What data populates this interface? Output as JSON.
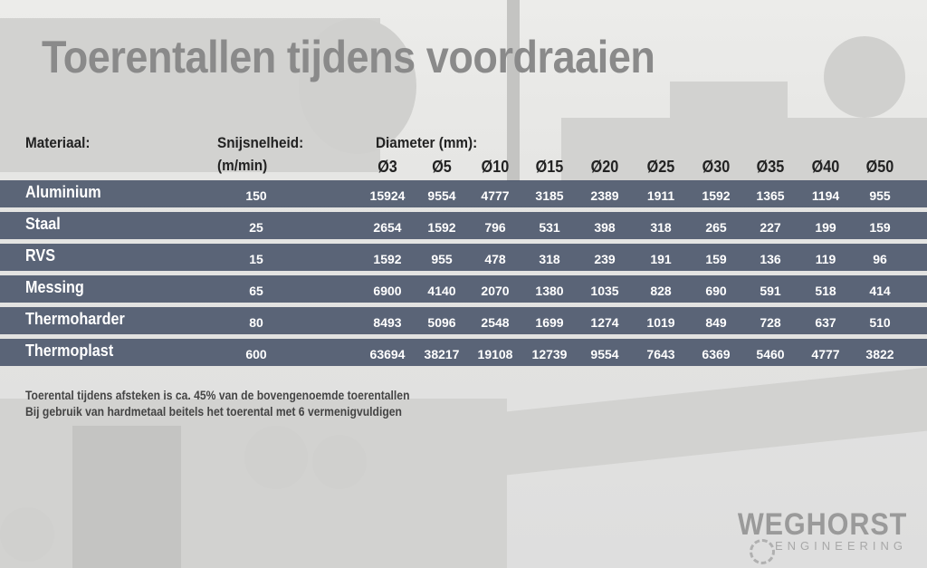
{
  "title": "Toerentallen tijdens voordraaien",
  "headers": {
    "material": "Materiaal:",
    "speed_line1": "Snijsnelheid:",
    "speed_line2": "(m/min)",
    "diameter": "Diameter (mm):"
  },
  "diameters": [
    "Ø3",
    "Ø5",
    "Ø10",
    "Ø15",
    "Ø20",
    "Ø25",
    "Ø30",
    "Ø35",
    "Ø40",
    "Ø50"
  ],
  "rows": [
    {
      "material": "Aluminium",
      "speed": "150",
      "values": [
        "15924",
        "9554",
        "4777",
        "3185",
        "2389",
        "1911",
        "1592",
        "1365",
        "1194",
        "955"
      ]
    },
    {
      "material": "Staal",
      "speed": "25",
      "values": [
        "2654",
        "1592",
        "796",
        "531",
        "398",
        "318",
        "265",
        "227",
        "199",
        "159"
      ]
    },
    {
      "material": "RVS",
      "speed": "15",
      "values": [
        "1592",
        "955",
        "478",
        "318",
        "239",
        "191",
        "159",
        "136",
        "119",
        "96"
      ]
    },
    {
      "material": "Messing",
      "speed": "65",
      "values": [
        "6900",
        "4140",
        "2070",
        "1380",
        "1035",
        "828",
        "690",
        "591",
        "518",
        "414"
      ]
    },
    {
      "material": "Thermoharder",
      "speed": "80",
      "values": [
        "8493",
        "5096",
        "2548",
        "1699",
        "1274",
        "1019",
        "849",
        "728",
        "637",
        "510"
      ]
    },
    {
      "material": "Thermoplast",
      "speed": "600",
      "values": [
        "63694",
        "38217",
        "19108",
        "12739",
        "9554",
        "7643",
        "6369",
        "5460",
        "4777",
        "3822"
      ]
    }
  ],
  "notes": [
    "Toerental tijdens afsteken is ca. 45% van de bovengenoemde toerentallen",
    "Bij gebruik van hardmetaal beitels het toerental met 6 vermenigvuldigen"
  ],
  "logo": {
    "name": "WEGHORST",
    "sub": "ENGINEERING"
  }
}
